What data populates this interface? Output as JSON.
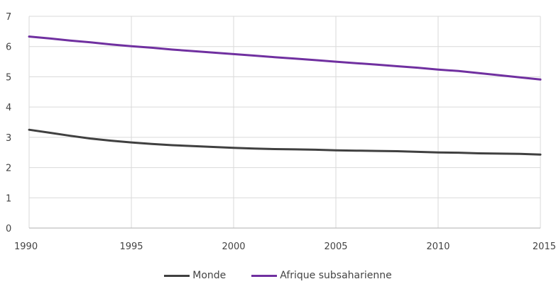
{
  "chart_data": {
    "type": "line",
    "x": [
      1990,
      1991,
      1992,
      1993,
      1994,
      1995,
      1996,
      1997,
      1998,
      1999,
      2000,
      2001,
      2002,
      2003,
      2004,
      2005,
      2006,
      2007,
      2008,
      2009,
      2010,
      2011,
      2012,
      2013,
      2014,
      2015
    ],
    "series": [
      {
        "name": "Monde",
        "color": "#404040",
        "values": [
          3.25,
          3.15,
          3.05,
          2.96,
          2.89,
          2.83,
          2.78,
          2.74,
          2.71,
          2.68,
          2.65,
          2.63,
          2.61,
          2.6,
          2.59,
          2.57,
          2.56,
          2.55,
          2.54,
          2.52,
          2.5,
          2.49,
          2.47,
          2.46,
          2.45,
          2.43
        ]
      },
      {
        "name": "Afrique subsaharienne",
        "color": "#7030a0",
        "values": [
          6.33,
          6.27,
          6.2,
          6.14,
          6.07,
          6.01,
          5.96,
          5.9,
          5.85,
          5.8,
          5.75,
          5.7,
          5.65,
          5.6,
          5.55,
          5.5,
          5.45,
          5.4,
          5.35,
          5.3,
          5.24,
          5.19,
          5.12,
          5.05,
          4.98,
          4.91
        ]
      }
    ],
    "x_ticks": [
      "1990",
      "1995",
      "2000",
      "2005",
      "2010",
      "2015"
    ],
    "y_ticks": [
      "0",
      "1",
      "2",
      "3",
      "4",
      "5",
      "6",
      "7"
    ],
    "xlim": [
      1990,
      2015
    ],
    "ylim": [
      0,
      7
    ],
    "grid": true,
    "legend_position": "bottom"
  }
}
